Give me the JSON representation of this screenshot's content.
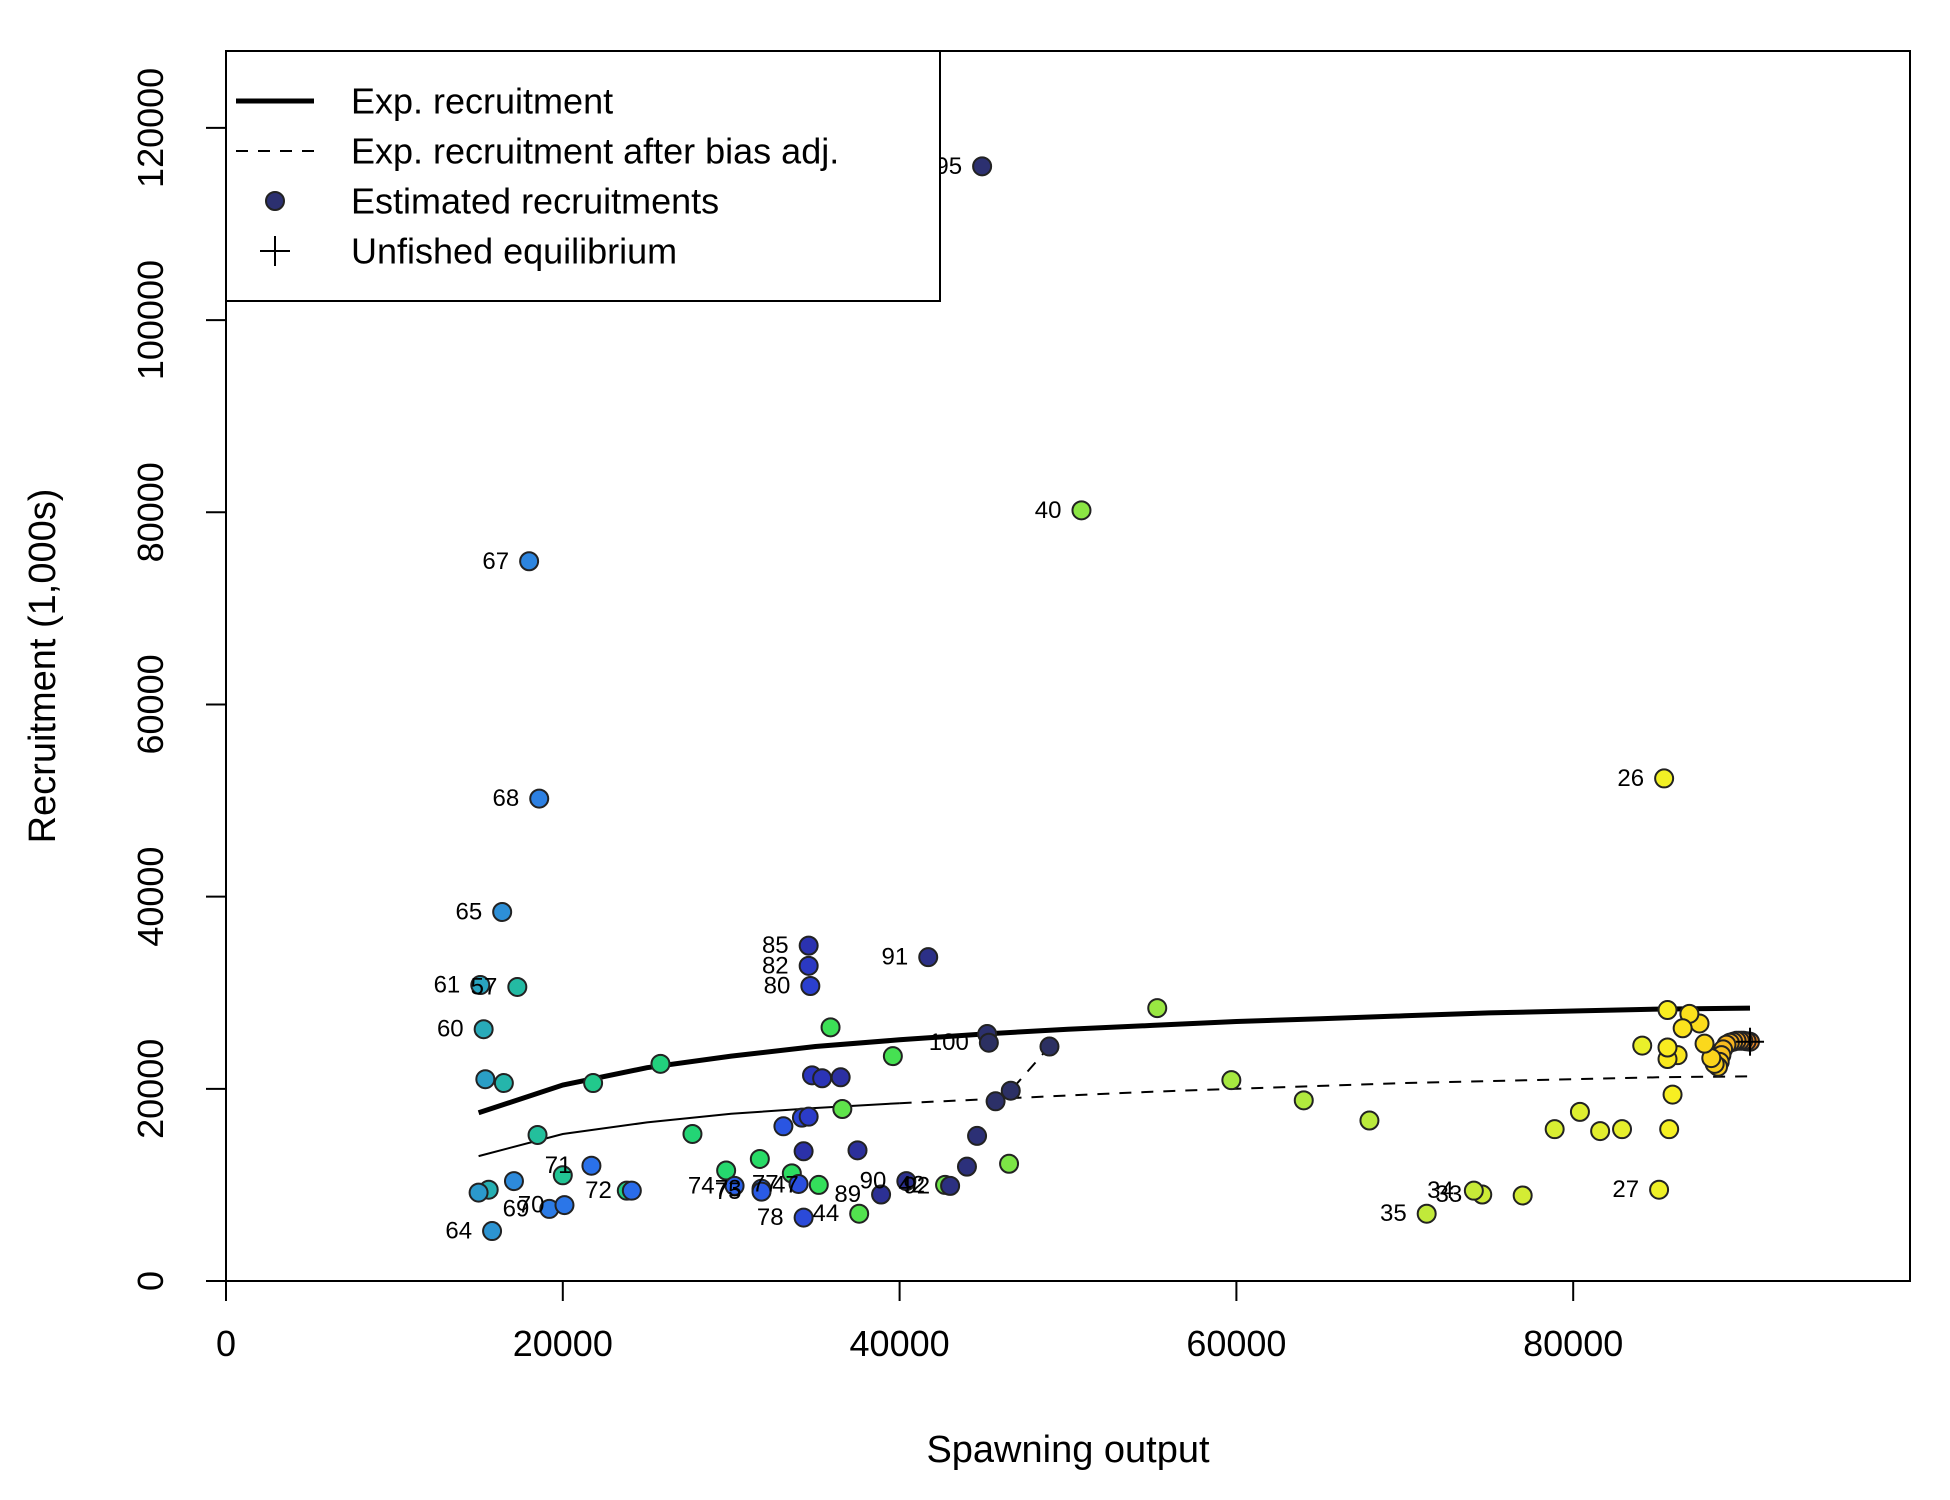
{
  "chart_data": {
    "type": "scatter",
    "xlabel": "Spawning output",
    "ylabel": "Recruitment (1,000s)",
    "xlim": [
      0,
      100000
    ],
    "ylim": [
      0,
      128000
    ],
    "x_ticks": [
      0,
      20000,
      40000,
      60000,
      80000
    ],
    "x_tick_labels": [
      "0",
      "20000",
      "40000",
      "60000",
      "80000"
    ],
    "y_ticks": [
      0,
      20000,
      40000,
      60000,
      80000,
      100000,
      120000
    ],
    "y_tick_labels": [
      "0",
      "20000",
      "40000",
      "60000",
      "80000",
      "100000",
      "120000"
    ],
    "legend": {
      "placement": "top-left",
      "entries": [
        {
          "label": "Exp. recruitment",
          "symbol": "line-thick"
        },
        {
          "label": "Exp. recruitment after bias adj.",
          "symbol": "line-dashed"
        },
        {
          "label": "Estimated recruitments",
          "symbol": "point"
        },
        {
          "label": "Unfished equilibrium",
          "symbol": "plus"
        }
      ]
    },
    "series": [
      {
        "name": "Exp. recruitment",
        "style": "thick",
        "x": [
          15000,
          20000,
          25000,
          30000,
          35000,
          40000,
          45000,
          50000,
          55000,
          60000,
          65000,
          70000,
          75000,
          80000,
          85000,
          90500
        ],
        "y": [
          17500,
          20400,
          22200,
          23400,
          24400,
          25100,
          25700,
          26200,
          26600,
          27000,
          27300,
          27600,
          27900,
          28100,
          28300,
          28400
        ]
      },
      {
        "name": "Exp. recruitment after bias adj.",
        "style": "thin-then-dashed",
        "x": [
          15000,
          20000,
          25000,
          30000,
          35000,
          40000,
          45000,
          50000,
          55000,
          60000,
          65000,
          70000,
          75000,
          80000,
          85000,
          90500
        ],
        "y": [
          13000,
          15300,
          16500,
          17400,
          18000,
          18500,
          18900,
          19300,
          19700,
          20000,
          20300,
          20600,
          20800,
          21000,
          21200,
          21300
        ],
        "dash_start_index": 5
      },
      {
        "name": "Recent recruitment path",
        "style": "dashed",
        "x": [
          45700,
          46600,
          48900
        ],
        "y": [
          18700,
          19800,
          24400
        ]
      }
    ],
    "points": [
      {
        "label": "",
        "x": 90500,
        "y": 24900,
        "color": "#f08a24"
      },
      {
        "label": "",
        "x": 90300,
        "y": 24950,
        "color": "#f08a24"
      },
      {
        "label": "",
        "x": 90100,
        "y": 25000,
        "color": "#f09326"
      },
      {
        "label": "",
        "x": 89900,
        "y": 25000,
        "color": "#f29a24"
      },
      {
        "label": "",
        "x": 89700,
        "y": 25000,
        "color": "#f3a023"
      },
      {
        "label": "",
        "x": 89500,
        "y": 24900,
        "color": "#f4a822"
      },
      {
        "label": "",
        "x": 89300,
        "y": 24800,
        "color": "#f5af20"
      },
      {
        "label": "",
        "x": 89100,
        "y": 24600,
        "color": "#f6b41f"
      },
      {
        "label": "",
        "x": 88900,
        "y": 24100,
        "color": "#f7ba1f"
      },
      {
        "label": "",
        "x": 88800,
        "y": 23500,
        "color": "#f7bf1e"
      },
      {
        "label": "",
        "x": 88700,
        "y": 22800,
        "color": "#f8c41e"
      },
      {
        "label": "",
        "x": 88600,
        "y": 22300,
        "color": "#f9ca1d"
      },
      {
        "label": "",
        "x": 88400,
        "y": 22600,
        "color": "#facf1c"
      },
      {
        "label": "",
        "x": 88200,
        "y": 23200,
        "color": "#fad41c"
      },
      {
        "label": "",
        "x": 87800,
        "y": 24700,
        "color": "#fbd81c"
      },
      {
        "label": "",
        "x": 87500,
        "y": 26800,
        "color": "#fbdc1c"
      },
      {
        "label": "",
        "x": 86900,
        "y": 27800,
        "color": "#fbe01d"
      },
      {
        "label": "",
        "x": 86500,
        "y": 26300,
        "color": "#fbe31d"
      },
      {
        "label": "",
        "x": 86200,
        "y": 23500,
        "color": "#fae61e"
      },
      {
        "label": "",
        "x": 85600,
        "y": 23100,
        "color": "#f9e91f"
      },
      {
        "label": "",
        "x": 85600,
        "y": 24300,
        "color": "#f9eb20"
      },
      {
        "label": "",
        "x": 85600,
        "y": 28200,
        "color": "#f8ed21"
      },
      {
        "label": "",
        "x": 85900,
        "y": 19400,
        "color": "#f7ef22"
      },
      {
        "label": "",
        "x": 85700,
        "y": 15800,
        "color": "#f5f023"
      },
      {
        "label": "26",
        "x": 85400,
        "y": 52300,
        "color": "#f1f025"
      },
      {
        "label": "27",
        "x": 85100,
        "y": 9500,
        "color": "#eef027"
      },
      {
        "label": "",
        "x": 84100,
        "y": 24500,
        "color": "#eaf02a"
      },
      {
        "label": "",
        "x": 82900,
        "y": 15800,
        "color": "#e6ef2c"
      },
      {
        "label": "",
        "x": 81600,
        "y": 15600,
        "color": "#e2ee2e"
      },
      {
        "label": "",
        "x": 80400,
        "y": 17600,
        "color": "#ddee30"
      },
      {
        "label": "",
        "x": 78900,
        "y": 15800,
        "color": "#d8ed32"
      },
      {
        "label": "",
        "x": 77000,
        "y": 8900,
        "color": "#d3ec34"
      },
      {
        "label": "33",
        "x": 74600,
        "y": 9000,
        "color": "#cdeb36"
      },
      {
        "label": "34",
        "x": 74100,
        "y": 9400,
        "color": "#c7ea38"
      },
      {
        "label": "35",
        "x": 71300,
        "y": 7000,
        "color": "#c1e93a"
      },
      {
        "label": "",
        "x": 67900,
        "y": 16700,
        "color": "#baea3c"
      },
      {
        "label": "",
        "x": 64000,
        "y": 18800,
        "color": "#b1e93e"
      },
      {
        "label": "",
        "x": 59700,
        "y": 20900,
        "color": "#a6e840"
      },
      {
        "label": "",
        "x": 55300,
        "y": 28400,
        "color": "#99e742"
      },
      {
        "label": "40",
        "x": 50800,
        "y": 80200,
        "color": "#8be644"
      },
      {
        "label": "",
        "x": 46500,
        "y": 12200,
        "color": "#7ce546"
      },
      {
        "label": "42",
        "x": 42700,
        "y": 10000,
        "color": "#6de448"
      },
      {
        "label": "",
        "x": 36600,
        "y": 17900,
        "color": "#5fe34b"
      },
      {
        "label": "44",
        "x": 37600,
        "y": 7000,
        "color": "#52e24e"
      },
      {
        "label": "",
        "x": 39600,
        "y": 23400,
        "color": "#46e152"
      },
      {
        "label": "",
        "x": 35900,
        "y": 26400,
        "color": "#3ce056"
      },
      {
        "label": "47",
        "x": 35200,
        "y": 10000,
        "color": "#34df5b"
      },
      {
        "label": "",
        "x": 33600,
        "y": 11200,
        "color": "#2ddd61"
      },
      {
        "label": "",
        "x": 31700,
        "y": 12700,
        "color": "#28db67"
      },
      {
        "label": "",
        "x": 29700,
        "y": 11500,
        "color": "#25d86e"
      },
      {
        "label": "",
        "x": 27700,
        "y": 15300,
        "color": "#23d575"
      },
      {
        "label": "",
        "x": 25800,
        "y": 22600,
        "color": "#22d17d"
      },
      {
        "label": "",
        "x": 23800,
        "y": 9400,
        "color": "#22cd84"
      },
      {
        "label": "",
        "x": 21800,
        "y": 20600,
        "color": "#22c98c"
      },
      {
        "label": "",
        "x": 20000,
        "y": 11000,
        "color": "#22c494"
      },
      {
        "label": "",
        "x": 18500,
        "y": 15200,
        "color": "#23bf9c"
      },
      {
        "label": "57",
        "x": 17300,
        "y": 30600,
        "color": "#24baa3"
      },
      {
        "label": "",
        "x": 16500,
        "y": 20600,
        "color": "#25b5ab"
      },
      {
        "label": "",
        "x": 15600,
        "y": 9500,
        "color": "#26afb2"
      },
      {
        "label": "60",
        "x": 15300,
        "y": 26200,
        "color": "#28aab9"
      },
      {
        "label": "61",
        "x": 15100,
        "y": 30800,
        "color": "#29a4c0"
      },
      {
        "label": "",
        "x": 15400,
        "y": 21000,
        "color": "#2a9ec6"
      },
      {
        "label": "",
        "x": 15000,
        "y": 9200,
        "color": "#2b99cc"
      },
      {
        "label": "64",
        "x": 15800,
        "y": 5200,
        "color": "#2c94d2"
      },
      {
        "label": "65",
        "x": 16400,
        "y": 38400,
        "color": "#2d8fd7"
      },
      {
        "label": "",
        "x": 17100,
        "y": 10400,
        "color": "#2d8adb"
      },
      {
        "label": "67",
        "x": 18000,
        "y": 74900,
        "color": "#2d85df"
      },
      {
        "label": "68",
        "x": 18600,
        "y": 50200,
        "color": "#2d80e2"
      },
      {
        "label": "69",
        "x": 19200,
        "y": 7500,
        "color": "#2c7be5"
      },
      {
        "label": "70",
        "x": 20100,
        "y": 7900,
        "color": "#2b76e8"
      },
      {
        "label": "71",
        "x": 21700,
        "y": 12000,
        "color": "#2a71ea"
      },
      {
        "label": "72",
        "x": 24100,
        "y": 9400,
        "color": "#2a6cea"
      },
      {
        "label": "73",
        "x": 31800,
        "y": 9600,
        "color": "#2a67ea"
      },
      {
        "label": "74",
        "x": 30200,
        "y": 9900,
        "color": "#2a61e9"
      },
      {
        "label": "75",
        "x": 31800,
        "y": 9300,
        "color": "#2a5be6"
      },
      {
        "label": "",
        "x": 33100,
        "y": 16100,
        "color": "#2a55e2"
      },
      {
        "label": "77",
        "x": 34000,
        "y": 10100,
        "color": "#2a4fde"
      },
      {
        "label": "78",
        "x": 34300,
        "y": 6600,
        "color": "#2b4ad9"
      },
      {
        "label": "",
        "x": 34200,
        "y": 17000,
        "color": "#2b45d4"
      },
      {
        "label": "80",
        "x": 34700,
        "y": 30700,
        "color": "#2b40cf"
      },
      {
        "label": "",
        "x": 34600,
        "y": 17100,
        "color": "#2b3cc9"
      },
      {
        "label": "82",
        "x": 34600,
        "y": 32800,
        "color": "#2b39c3"
      },
      {
        "label": "",
        "x": 34800,
        "y": 21400,
        "color": "#2b36bd"
      },
      {
        "label": "",
        "x": 35400,
        "y": 21100,
        "color": "#2b34b6"
      },
      {
        "label": "85",
        "x": 34600,
        "y": 34900,
        "color": "#2b32b0"
      },
      {
        "label": "",
        "x": 34300,
        "y": 13500,
        "color": "#2b31a9"
      },
      {
        "label": "",
        "x": 36500,
        "y": 21200,
        "color": "#2c30a2"
      },
      {
        "label": "",
        "x": 37500,
        "y": 13600,
        "color": "#2c309b"
      },
      {
        "label": "89",
        "x": 38900,
        "y": 9000,
        "color": "#2c3094"
      },
      {
        "label": "90",
        "x": 40400,
        "y": 10400,
        "color": "#2c308e"
      },
      {
        "label": "91",
        "x": 41700,
        "y": 33700,
        "color": "#2c3087"
      },
      {
        "label": "92",
        "x": 43000,
        "y": 9900,
        "color": "#2c3081"
      },
      {
        "label": "",
        "x": 44000,
        "y": 11900,
        "color": "#2c307b"
      },
      {
        "label": "",
        "x": 44600,
        "y": 15100,
        "color": "#2c3075"
      },
      {
        "label": "95",
        "x": 44900,
        "y": 116000,
        "color": "#2c3070"
      },
      {
        "label": "",
        "x": 45200,
        "y": 25700,
        "color": "#2c306c"
      },
      {
        "label": "",
        "x": 45700,
        "y": 18700,
        "color": "#2c3068"
      },
      {
        "label": "",
        "x": 46600,
        "y": 19800,
        "color": "#2c3065"
      },
      {
        "label": "",
        "x": 48900,
        "y": 24400,
        "color": "#2c3062"
      },
      {
        "label": "100",
        "x": 45300,
        "y": 24800,
        "color": "#2c3062"
      }
    ],
    "unfished_equilibrium": {
      "x": 90500,
      "y": 24900
    }
  }
}
